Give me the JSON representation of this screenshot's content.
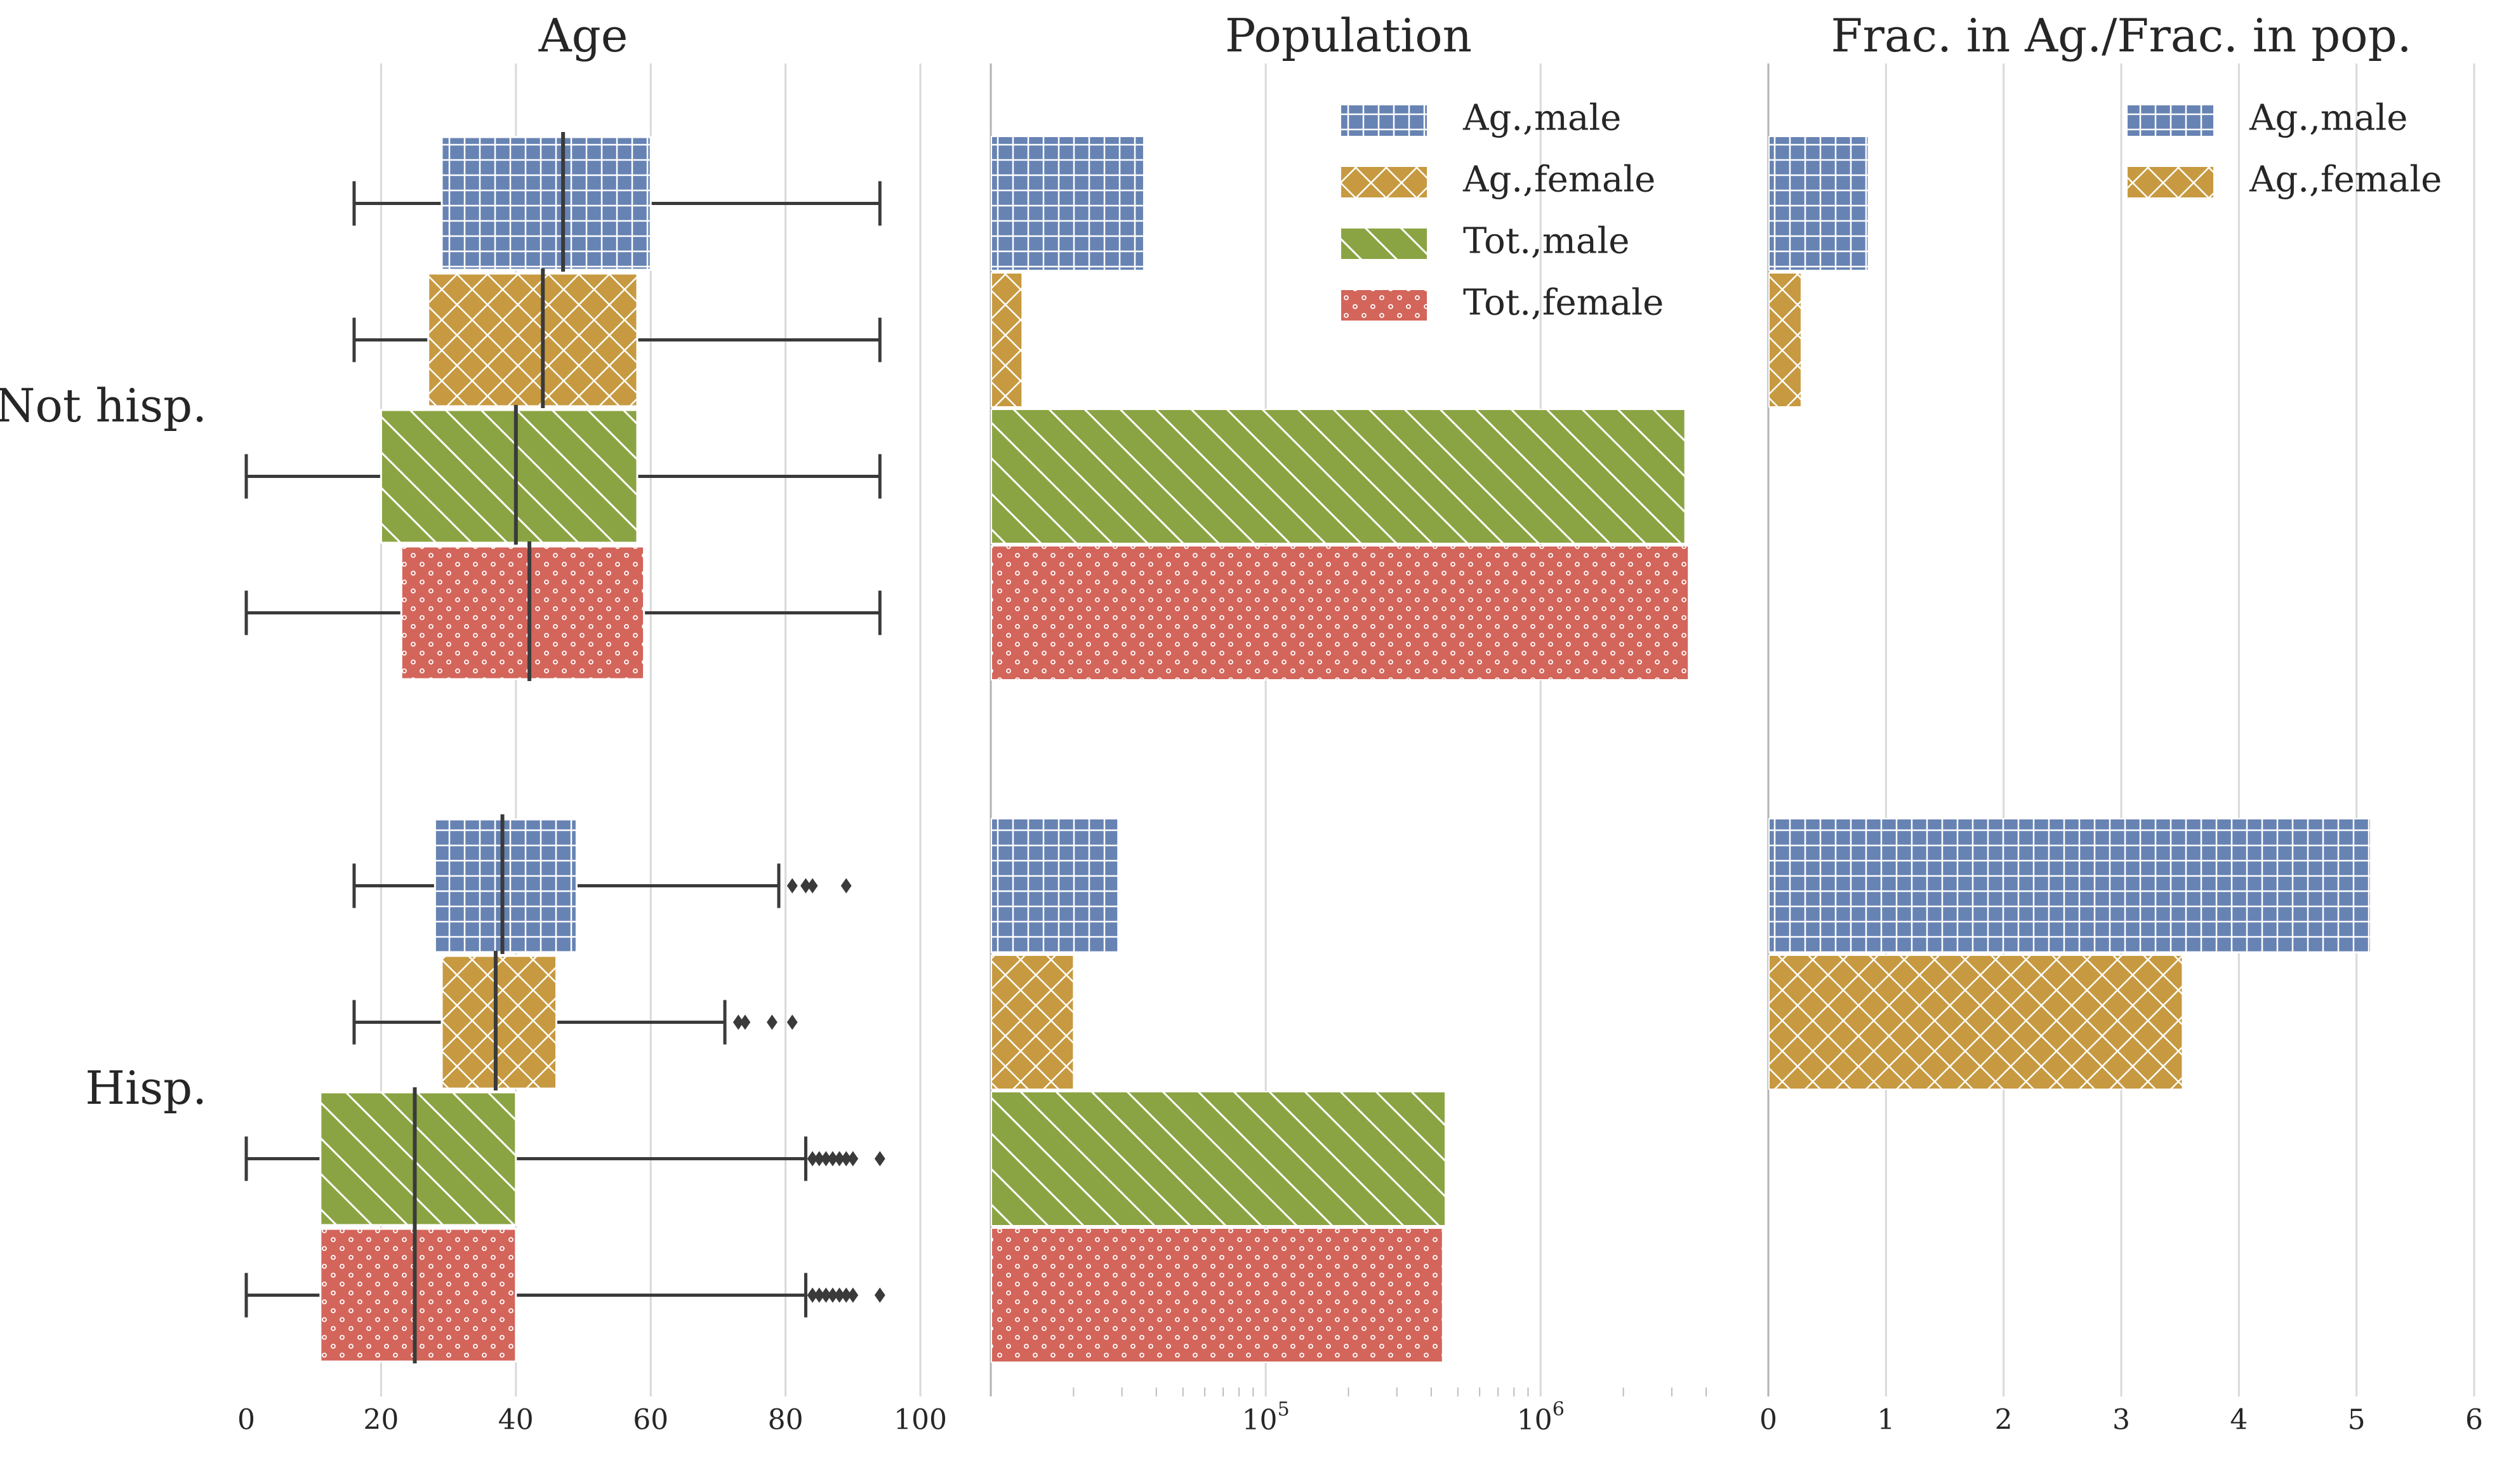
{
  "colors": {
    "ag_male": "#6783b3",
    "ag_female": "#c79a41",
    "tot_male": "#8ba443",
    "tot_female": "#d3655b",
    "hatch": "#ffffff",
    "text": "#262626"
  },
  "series": [
    {
      "key": "ag_male",
      "name": "Ag.,male",
      "hatch": "grid"
    },
    {
      "key": "ag_female",
      "name": "Ag.,female",
      "hatch": "crosshatch"
    },
    {
      "key": "tot_male",
      "name": "Tot.,male",
      "hatch": "diagonal"
    },
    {
      "key": "tot_female",
      "name": "Tot.,female",
      "hatch": "dots"
    }
  ],
  "groups": [
    "Not hisp.",
    "Hisp."
  ],
  "chart_data": [
    {
      "id": "age",
      "type": "box",
      "title": "Age",
      "orientation": "horizontal",
      "xlim": [
        0,
        100
      ],
      "xticks": [
        0,
        20,
        40,
        60,
        80,
        100
      ],
      "xtick_labels": [
        "0",
        "20",
        "40",
        "60",
        "80",
        "100"
      ],
      "grid": true,
      "data": {
        "Not hisp.": [
          {
            "series": "Ag.,male",
            "whislo": 16,
            "q1": 29,
            "med": 47,
            "q3": 60,
            "whishi": 94,
            "fliers": []
          },
          {
            "series": "Ag.,female",
            "whislo": 16,
            "q1": 27,
            "med": 44,
            "q3": 58,
            "whishi": 94,
            "fliers": []
          },
          {
            "series": "Tot.,male",
            "whislo": 0,
            "q1": 20,
            "med": 40,
            "q3": 58,
            "whishi": 94,
            "fliers": []
          },
          {
            "series": "Tot.,female",
            "whislo": 0,
            "q1": 23,
            "med": 42,
            "q3": 59,
            "whishi": 94,
            "fliers": []
          }
        ],
        "Hisp.": [
          {
            "series": "Ag.,male",
            "whislo": 16,
            "q1": 28,
            "med": 38,
            "q3": 49,
            "whishi": 79,
            "fliers": [
              81,
              83,
              84,
              89
            ]
          },
          {
            "series": "Ag.,female",
            "whislo": 16,
            "q1": 29,
            "med": 37,
            "q3": 46,
            "whishi": 71,
            "fliers": [
              73,
              74,
              78,
              81
            ]
          },
          {
            "series": "Tot.,male",
            "whislo": 0,
            "q1": 11,
            "med": 25,
            "q3": 40,
            "whishi": 83,
            "fliers": [
              84,
              85,
              86,
              87,
              88,
              89,
              90,
              94
            ]
          },
          {
            "series": "Tot.,female",
            "whislo": 0,
            "q1": 11,
            "med": 25,
            "q3": 40,
            "whishi": 83,
            "fliers": [
              84,
              85,
              86,
              87,
              88,
              89,
              90,
              94
            ]
          }
        ]
      }
    },
    {
      "id": "population",
      "type": "bar",
      "title": "Population",
      "orientation": "horizontal",
      "xscale": "log",
      "xlim": [
        10000,
        4000000
      ],
      "xticks": [
        100000,
        1000000
      ],
      "xtick_labels": [
        {
          "base": "10",
          "exp": "5"
        },
        {
          "base": "10",
          "exp": "6"
        }
      ],
      "grid": true,
      "legend_placement": "top-right",
      "data": {
        "Not hisp.": {
          "Ag.,male": 36000,
          "Ag.,female": 13000,
          "Tot.,male": 3350000,
          "Tot.,female": 3450000
        },
        "Hisp.": {
          "Ag.,male": 29000,
          "Ag.,female": 20000,
          "Tot.,male": 450000,
          "Tot.,female": 440000
        }
      }
    },
    {
      "id": "ratio",
      "type": "bar",
      "title": "Frac. in Ag./Frac. in pop.",
      "orientation": "horizontal",
      "xlim": [
        0,
        6
      ],
      "xticks": [
        0,
        1,
        2,
        3,
        4,
        5,
        6
      ],
      "xtick_labels": [
        "0",
        "1",
        "2",
        "3",
        "4",
        "5",
        "6"
      ],
      "grid": true,
      "legend_placement": "top-right",
      "legend_series": [
        "Ag.,male",
        "Ag.,female"
      ],
      "data": {
        "Not hisp.": {
          "Ag.,male": 0.85,
          "Ag.,female": 0.28
        },
        "Hisp.": {
          "Ag.,male": 5.12,
          "Ag.,female": 3.52
        }
      }
    }
  ]
}
